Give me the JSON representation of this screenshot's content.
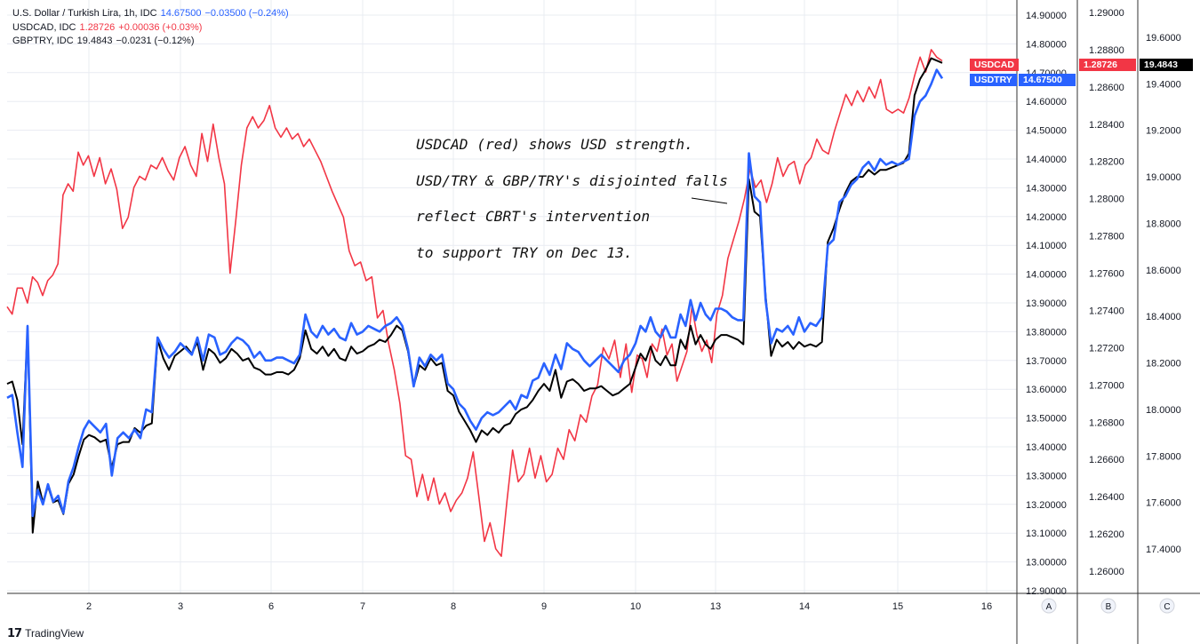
{
  "legend": [
    {
      "name": "U.S. Dollar / Turkish Lira, 1h, IDC",
      "value": "14.67500",
      "change": "−0.03500 (−0.24%)",
      "color": "#2962ff"
    },
    {
      "name": "USDCAD, IDC",
      "value": "1.28726",
      "change": "+0.00036 (+0.03%)",
      "color": "#f23645"
    },
    {
      "name": "GBPTRY, IDC",
      "value": "19.4843",
      "change": "−0.0231 (−0.12%)",
      "color": "#131722"
    }
  ],
  "annotation": [
    "USDCAD (red) shows USD strength.",
    "USD/TRY & GBP/TRY's disjointed falls",
    "reflect CBRT's intervention",
    "to support TRY on Dec 13."
  ],
  "tags": {
    "usdcad_name": "USDCAD",
    "usdcad_price": "1.28726",
    "usdtry_name": "USDTRY",
    "usdtry_price": "14.67500",
    "gbptry_price": "19.4843"
  },
  "brand": "TradingView",
  "colors": {
    "usdtry": "#2962ff",
    "usdcad": "#f23645",
    "gbptry": "#000000",
    "grid": "#e9ecf2"
  },
  "chart_data": {
    "type": "line",
    "x_tick_labels": [
      "2",
      "3",
      "6",
      "7",
      "8",
      "9",
      "10",
      "13",
      "14",
      "15",
      "16"
    ],
    "axes": {
      "A": {
        "label": "A",
        "series": "USDTRY",
        "ticks": [
          "14.90000",
          "14.80000",
          "14.70000",
          "14.60000",
          "14.50000",
          "14.40000",
          "14.30000",
          "14.20000",
          "14.10000",
          "14.00000",
          "13.90000",
          "13.80000",
          "13.70000",
          "13.60000",
          "13.50000",
          "13.40000",
          "13.30000",
          "13.20000",
          "13.10000",
          "13.00000",
          "12.90000"
        ],
        "ylim": [
          12.9,
          14.9
        ]
      },
      "B": {
        "label": "B",
        "series": "USDCAD",
        "ticks": [
          "1.29000",
          "1.28800",
          "1.28600",
          "1.28400",
          "1.28200",
          "1.28000",
          "1.27800",
          "1.27600",
          "1.27400",
          "1.27200",
          "1.27000",
          "1.26800",
          "1.26600",
          "1.26400",
          "1.26200",
          "1.26000"
        ],
        "ylim": [
          1.26,
          1.29
        ]
      },
      "C": {
        "label": "C",
        "series": "GBPTRY",
        "ticks": [
          "19.6000",
          "19.4000",
          "19.2000",
          "19.0000",
          "18.8000",
          "18.6000",
          "18.4000",
          "18.2000",
          "18.0000",
          "17.8000",
          "17.6000",
          "17.4000"
        ],
        "ylim": [
          17.4,
          19.6
        ]
      }
    },
    "series": [
      {
        "name": "USDCAD",
        "color": "#f23645",
        "axis": "B",
        "x_range": [
          0,
          10.5
        ],
        "values": [
          1.2742,
          1.2738,
          1.2752,
          1.2752,
          1.2744,
          1.2758,
          1.2755,
          1.2748,
          1.2756,
          1.2759,
          1.2765,
          1.2802,
          1.2808,
          1.2804,
          1.2825,
          1.2818,
          1.2823,
          1.2812,
          1.2822,
          1.2808,
          1.2816,
          1.2805,
          1.2784,
          1.279,
          1.2806,
          1.2812,
          1.281,
          1.2818,
          1.2816,
          1.2822,
          1.2815,
          1.281,
          1.2822,
          1.2828,
          1.2818,
          1.2812,
          1.2835,
          1.282,
          1.284,
          1.2822,
          1.2808,
          1.276,
          1.2788,
          1.2818,
          1.2838,
          1.2844,
          1.2838,
          1.2842,
          1.285,
          1.2838,
          1.2833,
          1.2838,
          1.2832,
          1.2835,
          1.2828,
          1.2832,
          1.2826,
          1.282,
          1.2812,
          1.2804,
          1.2797,
          1.279,
          1.2772,
          1.2764,
          1.2766,
          1.2756,
          1.2758,
          1.2736,
          1.274,
          1.2722,
          1.2708,
          1.269,
          1.2662,
          1.266,
          1.264,
          1.2652,
          1.2638,
          1.265,
          1.2636,
          1.2642,
          1.2632,
          1.2638,
          1.2642,
          1.265,
          1.2664,
          1.264,
          1.2616,
          1.2626,
          1.2612,
          1.2608,
          1.2638,
          1.2665,
          1.2648,
          1.2652,
          1.2666,
          1.265,
          1.2662,
          1.2648,
          1.2652,
          1.2666,
          1.266,
          1.2676,
          1.267,
          1.2684,
          1.268,
          1.2694,
          1.27,
          1.272,
          1.2714,
          1.2724,
          1.2704,
          1.2722,
          1.2696,
          1.2716,
          1.2714,
          1.2704,
          1.2722,
          1.2718,
          1.273,
          1.2716,
          1.2722,
          1.2702,
          1.271,
          1.2718,
          1.2742,
          1.2727,
          1.2718,
          1.2724,
          1.2712,
          1.2738,
          1.2748,
          1.2768,
          1.2778,
          1.2788,
          1.28,
          1.2816,
          1.2806,
          1.281,
          1.2798,
          1.2808,
          1.2822,
          1.2812,
          1.2818,
          1.282,
          1.2808,
          1.2818,
          1.2822,
          1.2832,
          1.2826,
          1.2824,
          1.2836,
          1.2846,
          1.2856,
          1.285,
          1.2858,
          1.2852,
          1.286,
          1.2854,
          1.2864,
          1.2848,
          1.2846,
          1.2848,
          1.2846,
          1.2854,
          1.2866,
          1.2876,
          1.2868,
          1.288,
          1.2876,
          1.2874
        ]
      },
      {
        "name": "USDTRY",
        "color": "#2962ff",
        "axis": "A",
        "x_range": [
          0,
          10.5
        ],
        "values": [
          13.57,
          13.58,
          13.45,
          13.33,
          13.82,
          13.16,
          13.25,
          13.2,
          13.27,
          13.21,
          13.23,
          13.17,
          13.28,
          13.33,
          13.4,
          13.46,
          13.49,
          13.47,
          13.45,
          13.48,
          13.3,
          13.43,
          13.45,
          13.43,
          13.46,
          13.43,
          13.53,
          13.52,
          13.78,
          13.74,
          13.71,
          13.73,
          13.76,
          13.74,
          13.72,
          13.78,
          13.7,
          13.79,
          13.78,
          13.72,
          13.73,
          13.76,
          13.78,
          13.77,
          13.75,
          13.71,
          13.73,
          13.7,
          13.7,
          13.71,
          13.71,
          13.7,
          13.69,
          13.72,
          13.86,
          13.8,
          13.78,
          13.82,
          13.79,
          13.81,
          13.78,
          13.77,
          13.83,
          13.79,
          13.8,
          13.82,
          13.81,
          13.8,
          13.82,
          13.83,
          13.85,
          13.82,
          13.74,
          13.61,
          13.71,
          13.68,
          13.72,
          13.7,
          13.72,
          13.62,
          13.6,
          13.55,
          13.53,
          13.49,
          13.46,
          13.5,
          13.52,
          13.51,
          13.52,
          13.54,
          13.56,
          13.53,
          13.58,
          13.57,
          13.63,
          13.64,
          13.69,
          13.65,
          13.72,
          13.67,
          13.76,
          13.74,
          13.73,
          13.7,
          13.68,
          13.7,
          13.72,
          13.7,
          13.68,
          13.66,
          13.7,
          13.72,
          13.76,
          13.82,
          13.8,
          13.85,
          13.8,
          13.78,
          13.82,
          13.78,
          13.78,
          13.86,
          13.82,
          13.91,
          13.84,
          13.9,
          13.86,
          13.84,
          13.88,
          13.88,
          13.87,
          13.85,
          13.84,
          13.84,
          14.42,
          14.27,
          14.25,
          13.91,
          13.76,
          13.81,
          13.8,
          13.82,
          13.79,
          13.85,
          13.8,
          13.83,
          13.82,
          13.85,
          14.1,
          14.12,
          14.25,
          14.27,
          14.31,
          14.33,
          14.37,
          14.39,
          14.36,
          14.4,
          14.38,
          14.39,
          14.38,
          14.39,
          14.4,
          14.55,
          14.6,
          14.62,
          14.66,
          14.71,
          14.68
        ]
      },
      {
        "name": "GBPTRY",
        "color": "#000000",
        "axis": "C",
        "x_range": [
          0,
          10.5
        ],
        "values": [
          18.11,
          18.12,
          18.04,
          17.85,
          18.35,
          17.47,
          17.69,
          17.6,
          17.67,
          17.6,
          17.61,
          17.55,
          17.68,
          17.72,
          17.8,
          17.87,
          17.89,
          17.88,
          17.86,
          17.87,
          17.75,
          17.85,
          17.86,
          17.86,
          17.92,
          17.9,
          17.93,
          17.94,
          18.3,
          18.22,
          18.17,
          18.23,
          18.25,
          18.27,
          18.24,
          18.29,
          18.17,
          18.26,
          18.24,
          18.2,
          18.22,
          18.26,
          18.24,
          18.21,
          18.22,
          18.18,
          18.17,
          18.15,
          18.15,
          18.16,
          18.16,
          18.15,
          18.17,
          18.22,
          18.34,
          18.26,
          18.24,
          18.27,
          18.23,
          18.26,
          18.22,
          18.21,
          18.27,
          18.24,
          18.25,
          18.27,
          18.28,
          18.3,
          18.29,
          18.32,
          18.36,
          18.34,
          18.25,
          18.1,
          18.19,
          18.17,
          18.22,
          18.19,
          18.2,
          18.08,
          18.06,
          17.99,
          17.95,
          17.91,
          17.86,
          17.91,
          17.89,
          17.92,
          17.9,
          17.93,
          17.94,
          17.98,
          18.0,
          18.01,
          18.04,
          18.08,
          18.11,
          18.08,
          18.17,
          18.05,
          18.12,
          18.13,
          18.11,
          18.08,
          18.09,
          18.09,
          18.1,
          18.08,
          18.06,
          18.07,
          18.09,
          18.11,
          18.18,
          18.24,
          18.21,
          18.27,
          18.21,
          18.19,
          18.23,
          18.19,
          18.19,
          18.3,
          18.26,
          18.36,
          18.28,
          18.32,
          18.28,
          18.26,
          18.3,
          18.32,
          18.32,
          18.31,
          18.3,
          18.28,
          18.99,
          18.85,
          18.83,
          18.49,
          18.23,
          18.3,
          18.27,
          18.29,
          18.26,
          18.29,
          18.27,
          18.28,
          18.27,
          18.29,
          18.72,
          18.78,
          18.86,
          18.93,
          18.98,
          19.0,
          19.0,
          19.03,
          19.01,
          19.03,
          19.03,
          19.04,
          19.05,
          19.06,
          19.1,
          19.35,
          19.42,
          19.46,
          19.51,
          19.5,
          19.49
        ]
      }
    ]
  }
}
